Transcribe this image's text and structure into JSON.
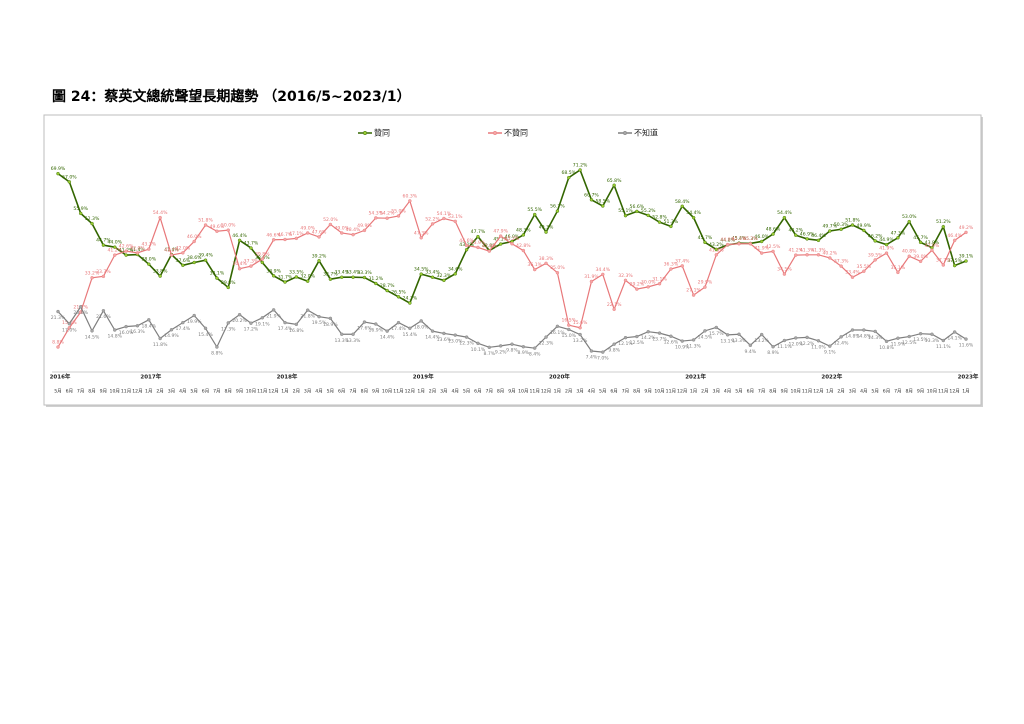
{
  "chart_data": {
    "type": "line",
    "title": "圖 24：蔡英文總統聲望長期趨勢 （2016/5~2023/1）",
    "categories": [
      "5月",
      "6月",
      "7月",
      "8月",
      "9月",
      "10月",
      "11月",
      "12月",
      "1月",
      "2月",
      "3月",
      "4月",
      "5月",
      "6月",
      "7月",
      "8月",
      "9月",
      "10月",
      "11月",
      "12月",
      "1月",
      "2月",
      "3月",
      "4月",
      "5月",
      "6月",
      "7月",
      "8月",
      "9月",
      "10月",
      "11月",
      "12月",
      "1月",
      "2月",
      "3月",
      "4月",
      "5月",
      "6月",
      "7月",
      "8月",
      "9月",
      "10月",
      "11月",
      "12月",
      "1月",
      "2月",
      "3月",
      "4月",
      "5月",
      "6月",
      "7月",
      "8月",
      "9月",
      "10月",
      "11月",
      "12月",
      "1月",
      "2月",
      "3月",
      "4月",
      "5月",
      "6月",
      "7月",
      "8月",
      "9月",
      "10月",
      "11月",
      "12月",
      "1月",
      "2月",
      "3月",
      "4月",
      "5月",
      "6月",
      "7月",
      "8月",
      "9月",
      "10月",
      "11月",
      "12月",
      "1月"
    ],
    "years": [
      "2016年",
      null,
      null,
      null,
      null,
      null,
      null,
      null,
      "2017年",
      null,
      null,
      null,
      null,
      null,
      null,
      null,
      null,
      null,
      null,
      null,
      "2018年",
      null,
      null,
      null,
      null,
      null,
      null,
      null,
      null,
      null,
      null,
      null,
      "2019年",
      null,
      null,
      null,
      null,
      null,
      null,
      null,
      null,
      null,
      null,
      null,
      "2020年",
      null,
      null,
      null,
      null,
      null,
      null,
      null,
      null,
      null,
      null,
      null,
      "2021年",
      null,
      null,
      null,
      null,
      null,
      null,
      null,
      null,
      null,
      null,
      null,
      "2022年",
      null,
      null,
      null,
      null,
      null,
      null,
      null,
      null,
      null,
      null,
      null,
      "2023年"
    ],
    "ylim": [
      0,
      80
    ],
    "series": [
      {
        "name": "贊同",
        "color": "#336600",
        "marker_color": "#99cc33",
        "label_side": "above",
        "values": [
          69.9,
          67.0,
          55.9,
          52.3,
          44.7,
          44.0,
          41.2,
          41.4,
          38.0,
          33.8,
          41.4,
          37.6,
          38.6,
          39.4,
          33.1,
          29.8,
          46.4,
          43.7,
          38.6,
          33.9,
          31.7,
          33.5,
          32.0,
          39.2,
          32.7,
          33.4,
          33.4,
          33.3,
          31.2,
          28.7,
          26.5,
          24.3,
          34.5,
          33.4,
          32.3,
          34.6,
          43.1,
          47.7,
          42.8,
          45.1,
          46.0,
          48.3,
          55.5,
          49.3,
          56.7,
          68.5,
          71.2,
          60.7,
          58.5,
          65.8,
          55.1,
          56.6,
          55.2,
          52.8,
          51.3,
          58.4,
          54.4,
          45.7,
          43.2,
          44.8,
          45.4,
          45.3,
          46.0,
          48.6,
          54.4,
          48.2,
          46.9,
          46.4,
          49.7,
          50.3,
          51.8,
          49.9,
          46.2,
          44.9,
          47.3,
          53.0,
          45.7,
          43.8,
          51.2,
          37.5,
          39.1
        ],
        "value_labels": [
          "69.9%",
          "67.0%",
          "55.9%",
          "52.3%",
          "44.7%",
          "44.0%",
          "41.2%",
          "41.4%",
          "38.0%",
          "33.8%",
          "41.4%",
          "37.6%",
          "38.6%",
          "39.4%",
          "33.1%",
          "29.8%",
          "46.4%",
          "43.7%",
          "38.6%",
          "33.9%",
          "31.7%",
          "33.5%",
          "32.0%",
          "39.2%",
          "32.7%",
          "33.4%",
          "33.4%",
          "33.3%",
          "31.2%",
          "28.7%",
          "26.5%",
          "24.3%",
          "34.5%",
          "33.4%",
          "32.3%",
          "34.6%",
          "43.1%",
          "47.7%",
          "42.8%",
          "45.1%",
          "46.0%",
          "48.3%",
          "55.5%",
          "49.3%",
          "56.7%",
          "68.5%",
          "71.2%",
          "60.7%",
          "58.5%",
          "65.8%",
          "55.1%",
          "56.6%",
          "55.2%",
          "52.8%",
          "51.3%",
          "58.4%",
          "54.4%",
          "45.7%",
          "43.2%",
          "44.8%",
          "45.4%",
          "45.3%",
          "46.0%",
          "48.6%",
          "54.4%",
          "48.2%",
          "46.9%",
          "46.4%",
          "49.7%",
          "50.3%",
          "51.8%",
          "49.9%",
          "46.2%",
          "44.9%",
          "47.3%",
          "53.0%",
          "45.7%",
          "43.8%",
          "51.2%",
          "37.5%",
          "39.1%"
        ]
      },
      {
        "name": "不贊同",
        "color": "#e8787a",
        "marker_color": "#f4a6a6",
        "label_side": "above",
        "values": [
          8.8,
          15.6,
          21.1,
          33.2,
          33.7,
          41.2,
          42.6,
          42.0,
          43.3,
          54.4,
          41.2,
          42.0,
          46.0,
          51.8,
          49.6,
          50.0,
          36.4,
          37.3,
          39.8,
          46.6,
          46.7,
          47.1,
          49.0,
          47.6,
          52.0,
          49.0,
          48.4,
          49.9,
          54.3,
          54.2,
          55.0,
          60.3,
          47.3,
          52.2,
          54.1,
          53.1,
          44.6,
          43.9,
          42.6,
          47.9,
          45.2,
          42.8,
          36.1,
          38.3,
          35.0,
          16.5,
          15.6,
          31.9,
          34.4,
          22.1,
          32.3,
          29.2,
          30.0,
          31.1,
          36.3,
          37.4,
          27.1,
          29.9,
          41.3,
          44.9,
          45.2,
          45.2,
          41.9,
          42.5,
          34.5,
          41.2,
          41.3,
          41.3,
          40.2,
          37.3,
          33.4,
          35.5,
          39.5,
          41.9,
          35.1,
          40.8,
          39.0,
          42.9,
          37.7,
          46.4,
          49.2
        ],
        "value_labels": [
          "8.8%",
          "15.6%",
          "21.1%",
          "33.2%",
          "33.7%",
          "41.2%",
          "42.6%",
          "42.0%",
          "43.3%",
          "54.4%",
          "41.2%",
          "42.0%",
          "46.0%",
          "51.8%",
          "49.6%",
          "50.0%",
          "36.4%",
          "37.3%",
          "39.8%",
          "46.6%",
          "46.7%",
          "47.1%",
          "49.0%",
          "47.6%",
          "52.0%",
          "49.0%",
          "48.4%",
          "49.9%",
          "54.3%",
          "54.2%",
          "55.0%",
          "60.3%",
          "47.3%",
          "52.2%",
          "54.1%",
          "53.1%",
          "44.6%",
          "43.9%",
          "42.6%",
          "47.9%",
          "45.2%",
          "42.8%",
          "36.1%",
          "38.3%",
          "35.0%",
          "16.5%",
          "15.6%",
          "31.9%",
          "34.4%",
          "22.1%",
          "32.3%",
          "29.2%",
          "30.0%",
          "31.1%",
          "36.3%",
          "37.4%",
          "27.1%",
          "29.9%",
          "41.3%",
          "44.9%",
          "45.2%",
          "45.2%",
          "41.9%",
          "42.5%",
          "34.5%",
          "41.2%",
          "41.3%",
          "41.3%",
          "40.2%",
          "37.3%",
          "33.4%",
          "35.5%",
          "39.5%",
          "41.9%",
          "35.1%",
          "40.8%",
          "39.0%",
          "42.9%",
          "37.7%",
          "46.4%",
          "49.2%"
        ]
      },
      {
        "name": "不知道",
        "color": "#7f7f7f",
        "marker_color": "#a6a6a6",
        "label_side": "below",
        "values": [
          21.3,
          17.0,
          23.0,
          14.5,
          21.6,
          14.8,
          16.0,
          16.3,
          18.4,
          11.8,
          14.9,
          17.4,
          19.9,
          15.4,
          8.8,
          17.3,
          20.2,
          17.2,
          19.1,
          21.9,
          17.4,
          16.8,
          21.8,
          19.5,
          18.9,
          13.3,
          13.3,
          17.6,
          16.9,
          14.4,
          17.4,
          15.4,
          18.0,
          14.4,
          13.6,
          13.0,
          12.3,
          10.1,
          8.7,
          9.2,
          9.8,
          8.9,
          8.4,
          12.3,
          16.1,
          15.0,
          13.2,
          7.4,
          7.0,
          9.8,
          12.1,
          12.5,
          14.2,
          13.7,
          12.6,
          10.9,
          11.3,
          14.5,
          15.7,
          13.1,
          13.3,
          9.4,
          13.2,
          8.9,
          11.1,
          12.0,
          12.2,
          11.0,
          9.1,
          12.4,
          14.8,
          14.8,
          14.3,
          10.8,
          11.9,
          12.5,
          13.5,
          13.3,
          11.1,
          14.1,
          11.6
        ],
        "value_labels": [
          "21.3%",
          "17.0%",
          "23.0%",
          "14.5%",
          "21.6%",
          "14.8%",
          "16.0%",
          "16.3%",
          "18.4%",
          "11.8%",
          "14.9%",
          "17.4%",
          "19.9%",
          "15.4%",
          "8.8%",
          "17.3%",
          "20.2%",
          "17.2%",
          "19.1%",
          "21.9%",
          "17.4%",
          "16.8%",
          "21.8%",
          "19.5%",
          "18.9%",
          "13.3%",
          "13.3%",
          "17.6%",
          "16.9%",
          "14.4%",
          "17.4%",
          "15.4%",
          "18.0%",
          "14.4%",
          "13.6%",
          "13.0%",
          "12.3%",
          "10.1%",
          "8.7%",
          "9.2%",
          "9.8%",
          "8.9%",
          "8.4%",
          "12.3%",
          "16.1%",
          "15.0%",
          "13.2%",
          "7.4%",
          "7.0%",
          "9.8%",
          "12.1%",
          "12.5%",
          "14.2%",
          "13.7%",
          "12.6%",
          "10.9%",
          "11.3%",
          "14.5%",
          "15.7%",
          "13.1%",
          "13.3%",
          "9.4%",
          "13.2%",
          "8.9%",
          "11.1%",
          "12.0%",
          "12.2%",
          "11.0%",
          "9.1%",
          "12.4%",
          "14.8%",
          "14.8%",
          "14.3%",
          "10.8%",
          "11.9%",
          "12.5%",
          "13.5%",
          "13.3%",
          "11.1%",
          "14.1%",
          "11.6%"
        ]
      }
    ]
  }
}
